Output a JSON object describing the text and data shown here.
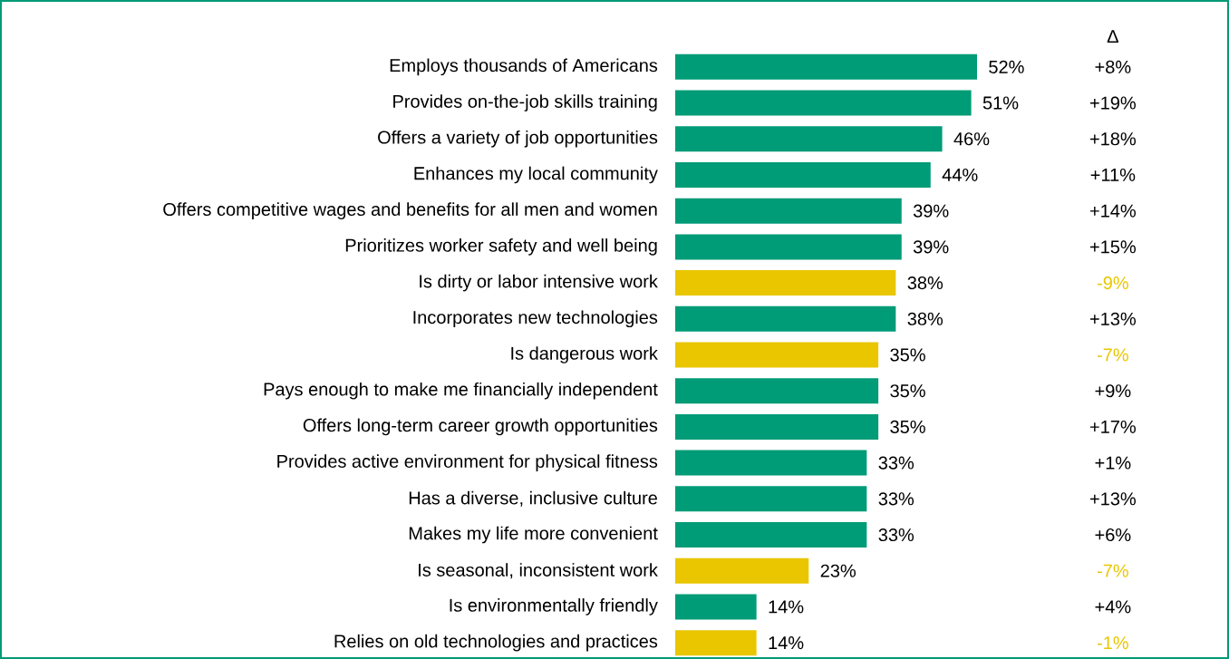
{
  "chart_data": {
    "type": "bar",
    "orientation": "horizontal",
    "categories": [
      "Employs thousands of Americans",
      "Provides on-the-job skills training",
      "Offers a variety of job opportunities",
      "Enhances my local community",
      "Offers competitive wages and benefits for all men and women",
      "Prioritizes worker safety and well being",
      "Is dirty or labor intensive work",
      "Incorporates new technologies",
      "Is dangerous work",
      "Pays enough to make me financially independent",
      "Offers long-term career growth opportunities",
      "Provides active environment for physical fitness",
      "Has a diverse, inclusive culture",
      "Makes my life more convenient",
      "Is seasonal, inconsistent work",
      "Is environmentally friendly",
      "Relies on old technologies and practices"
    ],
    "values": [
      52,
      51,
      46,
      44,
      39,
      39,
      38,
      38,
      35,
      35,
      35,
      33,
      33,
      33,
      23,
      14,
      14
    ],
    "value_labels": [
      "52%",
      "51%",
      "46%",
      "44%",
      "39%",
      "39%",
      "38%",
      "38%",
      "35%",
      "35%",
      "35%",
      "33%",
      "33%",
      "33%",
      "23%",
      "14%",
      "14%"
    ],
    "colors": [
      "#009b77",
      "#009b77",
      "#009b77",
      "#009b77",
      "#009b77",
      "#009b77",
      "#e9c600",
      "#009b77",
      "#e9c600",
      "#009b77",
      "#009b77",
      "#009b77",
      "#009b77",
      "#009b77",
      "#e9c600",
      "#009b77",
      "#e9c600"
    ],
    "annotations": [
      "Δ",
      "+8%",
      "+19%",
      "+18%",
      "+11%",
      "+14%",
      "+15%",
      "-9%",
      "+13%",
      "-7%",
      "+9%",
      "+17%",
      "+1%",
      "+13%",
      "+6%",
      "-7%",
      "+4%",
      "-1%"
    ]
  }
}
